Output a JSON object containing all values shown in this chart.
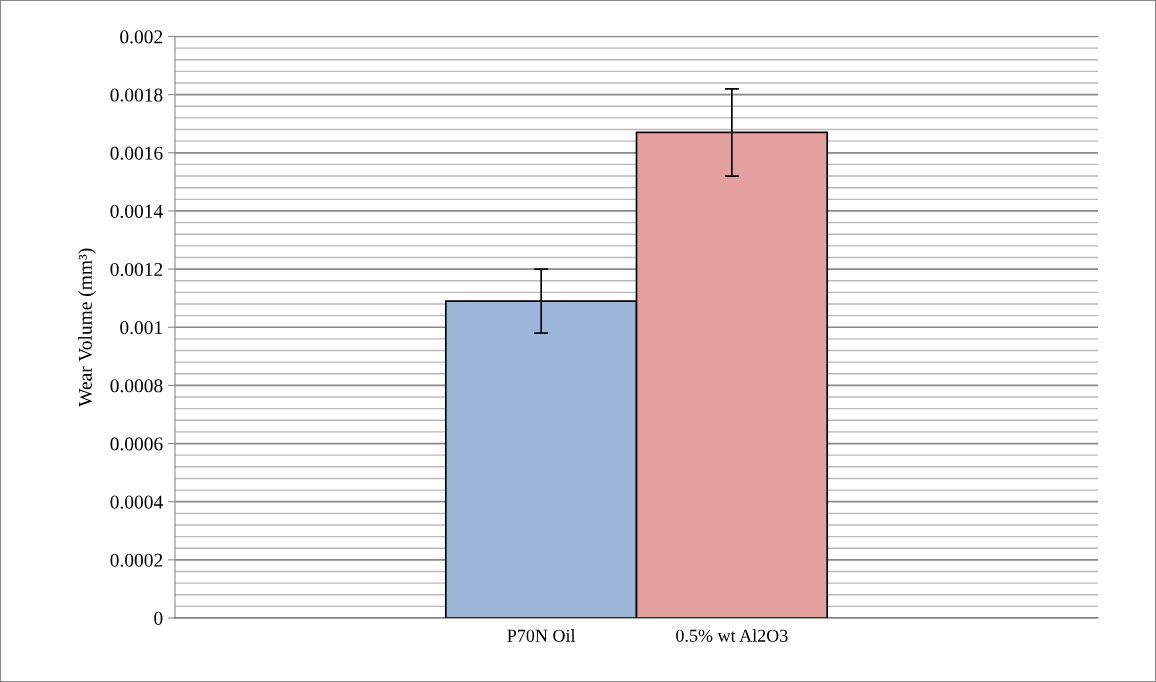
{
  "chart_data": {
    "type": "bar",
    "ylabel": "Wear Volume (mm³)",
    "categories": [
      "P70N Oil",
      "0.5% wt Al2O3"
    ],
    "values": [
      0.00109,
      0.00167
    ],
    "errors": [
      0.00011,
      0.00015
    ],
    "colors": [
      "#9cb6da",
      "#e3a09e"
    ],
    "ylim": [
      0,
      0.002
    ],
    "yticks": [
      0,
      0.0002,
      0.0004,
      0.0006,
      0.0008,
      0.001,
      0.0012,
      0.0014,
      0.0016,
      0.0018,
      0.002
    ],
    "grid": "y",
    "legend": false
  }
}
